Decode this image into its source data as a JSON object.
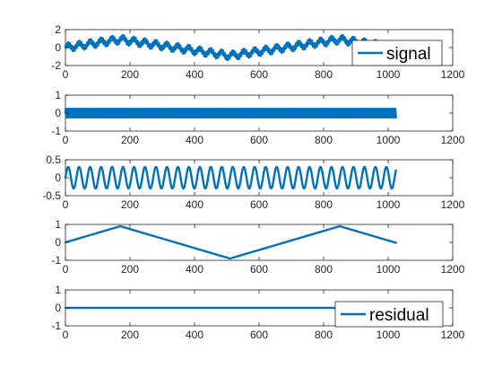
{
  "chart_data": [
    {
      "type": "line",
      "xlim": [
        0,
        1200
      ],
      "ylim": [
        -2,
        2
      ],
      "xticks": [
        0,
        200,
        400,
        600,
        800,
        1000,
        1200
      ],
      "yticks": [
        -2,
        0,
        2
      ],
      "legend": "signal",
      "legend_position": "bottom-right",
      "series": [
        {
          "name": "signal",
          "color": "#0072BD",
          "components": {
            "trend_amplitude": 0.9,
            "trend_period": 340,
            "trend_peak_x": 170,
            "osc_amplitude": 0.3,
            "osc_period": 34,
            "fast_amplitude": 0.28,
            "fast_period": 6
          },
          "x_range": [
            0,
            1024
          ]
        }
      ]
    },
    {
      "type": "line",
      "xlim": [
        0,
        1200
      ],
      "ylim": [
        -1,
        1
      ],
      "xticks": [
        0,
        200,
        400,
        600,
        800,
        1000,
        1200
      ],
      "yticks": [
        -1,
        0,
        1
      ],
      "series": [
        {
          "color": "#0072BD",
          "components": {
            "fast_amplitude": 0.28,
            "fast_period": 6
          },
          "x_range": [
            0,
            1024
          ]
        }
      ]
    },
    {
      "type": "line",
      "xlim": [
        0,
        1200
      ],
      "ylim": [
        -0.5,
        0.5
      ],
      "xticks": [
        0,
        200,
        400,
        600,
        800,
        1000,
        1200
      ],
      "yticks": [
        -0.5,
        0,
        0.5
      ],
      "series": [
        {
          "color": "#0072BD",
          "components": {
            "osc_amplitude": 0.3,
            "osc_period": 34
          },
          "x_range": [
            0,
            1024
          ]
        }
      ]
    },
    {
      "type": "line",
      "xlim": [
        0,
        1200
      ],
      "ylim": [
        -1,
        1
      ],
      "xticks": [
        0,
        200,
        400,
        600,
        800,
        1000,
        1200
      ],
      "yticks": [
        -1,
        0,
        1
      ],
      "series": [
        {
          "color": "#0072BD",
          "components": {
            "trend_amplitude": 0.9,
            "trend_period": 340,
            "trend_peak_x": 170
          },
          "x_range": [
            0,
            1024
          ]
        }
      ]
    },
    {
      "type": "line",
      "xlim": [
        0,
        1200
      ],
      "ylim": [
        -1,
        1
      ],
      "xticks": [
        0,
        200,
        400,
        600,
        800,
        1000,
        1200
      ],
      "yticks": [
        -1,
        0,
        1
      ],
      "legend": "residual",
      "legend_position": "top-right",
      "series": [
        {
          "name": "residual",
          "color": "#0072BD",
          "components": {
            "constant": 0.0
          },
          "x_range": [
            0,
            1024
          ]
        }
      ]
    }
  ]
}
